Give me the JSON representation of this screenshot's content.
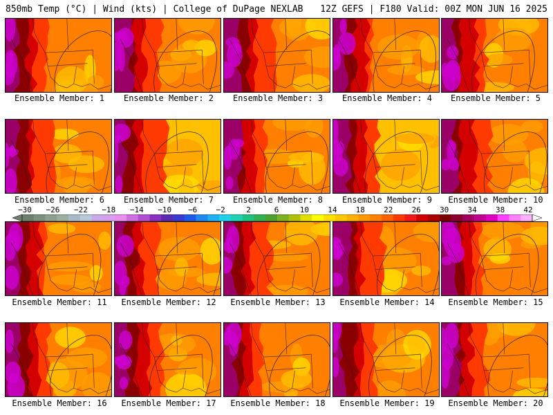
{
  "header": {
    "left": "850mb Temp (°C) | Wind (kts) | College of DuPage NEXLAB",
    "right": "12Z GEFS | F180 Valid: 00Z MON JUN 16 2025"
  },
  "members": [
    "Ensemble Member: 1",
    "Ensemble Member: 2",
    "Ensemble Member: 3",
    "Ensemble Member: 4",
    "Ensemble Member: 5",
    "Ensemble Member: 6",
    "Ensemble Member: 7",
    "Ensemble Member: 8",
    "Ensemble Member: 9",
    "Ensemble Member: 10",
    "Ensemble Member: 11",
    "Ensemble Member: 12",
    "Ensemble Member: 13",
    "Ensemble Member: 14",
    "Ensemble Member: 15",
    "Ensemble Member: 16",
    "Ensemble Member: 17",
    "Ensemble Member: 18",
    "Ensemble Member: 19",
    "Ensemble Member: 20"
  ],
  "colorbar": {
    "ticks": [
      "−30",
      "−26",
      "−22",
      "−18",
      "−14",
      "−10",
      "−6",
      "−2",
      "2",
      "6",
      "10",
      "14",
      "18",
      "22",
      "26",
      "30",
      "34",
      "38",
      "42"
    ],
    "colors": [
      "#6f7f6f",
      "#7f8f7f",
      "#8f9f8f",
      "#9faf9f",
      "#a9b9c9",
      "#b9c9d9",
      "#c9a9e9",
      "#d99fef",
      "#e98fef",
      "#d070e0",
      "#b050d0",
      "#8a30c0",
      "#5a2ab0",
      "#3a3ad0",
      "#1e5ae8",
      "#1e8af0",
      "#1eb0f0",
      "#1ed0e8",
      "#20d0b0",
      "#20c080",
      "#30b050",
      "#50a030",
      "#80b020",
      "#b0c010",
      "#e0e000",
      "#ffff00",
      "#ffe000",
      "#ffc800",
      "#ffb000",
      "#ff9800",
      "#ff8000",
      "#ff6000",
      "#ff3800",
      "#f01818",
      "#d00000",
      "#a80000",
      "#7a0000",
      "#8a0030",
      "#a00060",
      "#c00090",
      "#e000c0",
      "#ff40ff",
      "#ff80ff",
      "#ffb0ff"
    ]
  },
  "map_palette": {
    "magenta": "#cc00cc",
    "purple": "#9a0066",
    "dark_red": "#8a0000",
    "red": "#d40000",
    "red_orange": "#ff3a00",
    "orange": "#ff8000",
    "light_orange": "#ffa000",
    "gold": "#ffc000",
    "yellow": "#ffe000"
  }
}
